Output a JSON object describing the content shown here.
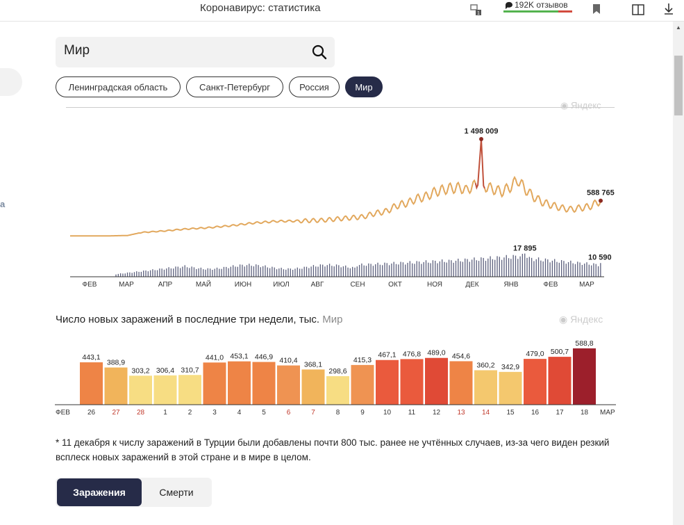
{
  "window": {
    "title": "Коронавирус: статистика",
    "reviews": "192K отзывов"
  },
  "search": {
    "value": "Мир"
  },
  "regions": [
    {
      "label": "Ленинградская область",
      "active": false
    },
    {
      "label": "Санкт-Петербург",
      "active": false
    },
    {
      "label": "Россия",
      "active": false
    },
    {
      "label": "Мир",
      "active": true
    }
  ],
  "side": {
    "letter": "а"
  },
  "watermark": "Яндекс",
  "chart_data": [
    {
      "type": "line",
      "months": [
        "ФЕВ",
        "МАР",
        "АПР",
        "МАЙ",
        "ИЮН",
        "ИЮЛ",
        "АВГ",
        "СЕН",
        "ОКТ",
        "НОЯ",
        "ДЕК",
        "ЯНВ",
        "ФЕВ",
        "МАР"
      ],
      "line_keypoints": [
        [
          0,
          70000
        ],
        [
          35,
          70000
        ],
        [
          50,
          75000
        ],
        [
          62,
          120000
        ],
        [
          80,
          140000
        ],
        [
          100,
          170000
        ],
        [
          120,
          190000
        ],
        [
          140,
          220000
        ],
        [
          160,
          260000
        ],
        [
          180,
          285000
        ],
        [
          200,
          290000
        ],
        [
          220,
          300000
        ],
        [
          240,
          330000
        ],
        [
          255,
          350000
        ],
        [
          265,
          400000
        ],
        [
          275,
          430000
        ],
        [
          285,
          520000
        ],
        [
          295,
          560000
        ],
        [
          300,
          610000
        ],
        [
          310,
          650000
        ],
        [
          318,
          720000
        ],
        [
          330,
          770000
        ],
        [
          340,
          780000
        ],
        [
          345,
          740000
        ],
        [
          350,
          800000
        ],
        [
          355,
          820000
        ],
        [
          358,
          1498009
        ],
        [
          360,
          810000
        ],
        [
          368,
          760000
        ],
        [
          376,
          720000
        ],
        [
          384,
          800000
        ],
        [
          390,
          900000
        ],
        [
          396,
          760000
        ],
        [
          404,
          640000
        ],
        [
          412,
          560000
        ],
        [
          420,
          520000
        ],
        [
          428,
          480000
        ],
        [
          436,
          460000
        ],
        [
          444,
          480000
        ],
        [
          452,
          500000
        ],
        [
          458,
          550000
        ],
        [
          462,
          588765
        ]
      ],
      "line_peak": {
        "label": "1 498 009",
        "value": 1498009
      },
      "line_last": {
        "label": "588 765",
        "value": 588765
      },
      "deaths_peak": {
        "label": "17 895",
        "value": 17895
      },
      "deaths_last": {
        "label": "10 590",
        "value": 10590
      },
      "ylim_line": [
        0,
        1600000
      ],
      "ylim_deaths": [
        0,
        18500
      ]
    },
    {
      "type": "bar",
      "title": "Число новых заражений в последние три недели, тыс.",
      "region": "Мир",
      "categories": [
        "26",
        "27",
        "28",
        "1",
        "2",
        "3",
        "4",
        "5",
        "6",
        "7",
        "8",
        "9",
        "10",
        "11",
        "12",
        "13",
        "14",
        "15",
        "16",
        "17",
        "18"
      ],
      "weekend": [
        false,
        true,
        true,
        false,
        false,
        false,
        false,
        false,
        true,
        true,
        false,
        false,
        false,
        false,
        false,
        true,
        true,
        false,
        false,
        false,
        false
      ],
      "values": [
        443.1,
        388.9,
        303.2,
        306.4,
        310.7,
        441.0,
        453.1,
        446.9,
        410.4,
        368.1,
        298.6,
        415.3,
        467.1,
        476.8,
        489.0,
        454.6,
        360.2,
        342.9,
        479.0,
        500.7,
        588.8
      ],
      "value_labels": [
        "443,1",
        "388,9",
        "303,2",
        "306,4",
        "310,7",
        "441,0",
        "453,1",
        "446,9",
        "410,4",
        "368,1",
        "298,6",
        "415,3",
        "467,1",
        "476,8",
        "489,0",
        "454,6",
        "360,2",
        "342,9",
        "479,0",
        "500,7",
        "588,8"
      ],
      "month_start": "ФЕВ",
      "month_end": "МАР",
      "ylim": [
        0,
        588.8
      ]
    }
  ],
  "footnote": "* 11 декабря к числу заражений в Турции были добавлены почти 800 тыс. ранее не учтённых случаев, из-за чего виден резкий всплеск новых заражений в этой стране и в мире в целом.",
  "tabs": {
    "infections": "Заражения",
    "deaths": "Смерти"
  },
  "colors": {
    "accent": "#262b48",
    "line": "#e2a85d",
    "line_peak": "#c0503a",
    "deaths_bars": "#5b5f7c",
    "weekend_label": "#c0392b"
  }
}
